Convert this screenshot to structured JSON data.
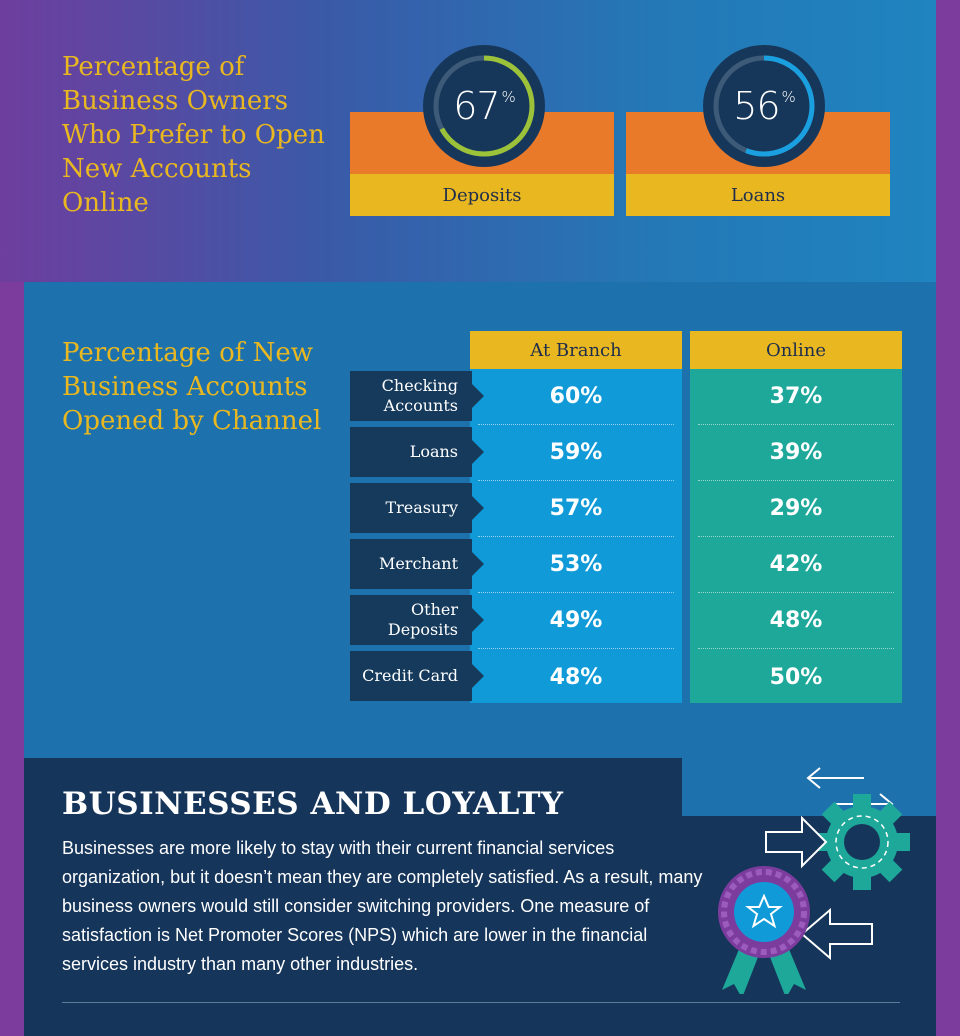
{
  "colors": {
    "purple": "#7b3c9e",
    "blue": "#1d71ad",
    "navy": "#15355a",
    "yellow": "#e9b820",
    "orange": "#e87a2a",
    "branch_blue": "#109bd8",
    "online_teal": "#1da89a",
    "ring_green": "#9cc23a",
    "ring_blue": "#1aa0e0"
  },
  "section1": {
    "title": "Percentage of Business Owners Who Prefer to Open New Accounts Online",
    "cards": [
      {
        "label": "Deposits",
        "value": "67",
        "unit": "%",
        "fraction": 0.67,
        "ring_color": "#9cc23a"
      },
      {
        "label": "Loans",
        "value": "56",
        "unit": "%",
        "fraction": 0.56,
        "ring_color": "#1aa0e0"
      }
    ]
  },
  "section2": {
    "title": "Percentage of New Business Accounts Opened by Channel",
    "columns": [
      "At Branch",
      "Online"
    ],
    "rows": [
      {
        "label": "Checking Accounts",
        "branch": "60%",
        "online": "37%"
      },
      {
        "label": "Loans",
        "branch": "59%",
        "online": "39%"
      },
      {
        "label": "Treasury",
        "branch": "57%",
        "online": "29%"
      },
      {
        "label": "Merchant",
        "branch": "53%",
        "online": "42%"
      },
      {
        "label": "Other Deposits",
        "branch": "49%",
        "online": "48%"
      },
      {
        "label": "Credit Card",
        "branch": "48%",
        "online": "50%"
      }
    ]
  },
  "section3": {
    "title": "BUSINESSES AND LOYALTY",
    "body": "Businesses are more likely to stay with their current financial services organization, but it doesn’t mean they are completely satisfied. As a result, many business owners would still consider switching providers. One measure of satisfaction is Net Promoter Scores (NPS) which are lower in the financial services industry than many other industries.",
    "icons": [
      "arrows-icon",
      "gear-icon",
      "ribbon-award-icon",
      "star-icon"
    ]
  }
}
